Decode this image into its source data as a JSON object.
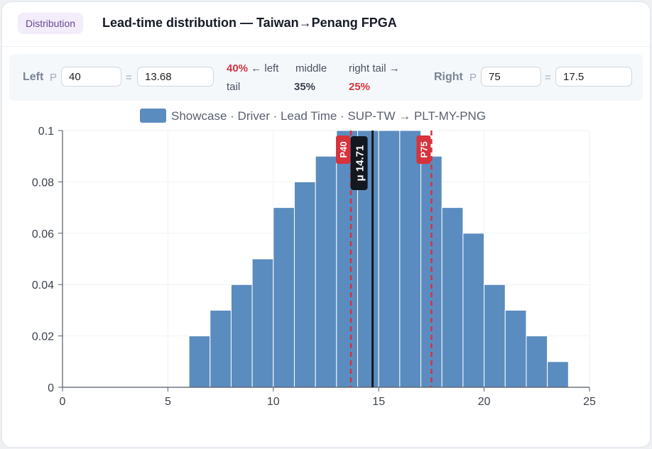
{
  "header": {
    "badge": "Distribution",
    "title": "Lead-time distribution — Taiwan→Penang FPGA"
  },
  "controls": {
    "left_label": "Left",
    "right_label": "Right",
    "p_prefix": "P",
    "equals": "=",
    "left_percentile": "40",
    "left_value": "13.68",
    "right_percentile": "75",
    "right_value": "17.5",
    "left_tail_pct": "40%",
    "left_tail_label_a": "← left",
    "left_tail_label_b": "tail",
    "middle_label": "middle",
    "middle_pct": "35%",
    "right_tail_label": "right tail →",
    "right_tail_pct": "25%"
  },
  "colors": {
    "bar": "#5b8cbf",
    "bar_stroke": "#ffffff",
    "marker_red": "#d6333d",
    "mean_line": "#111820",
    "axis": "#555b66",
    "grid": "#eef2f6"
  },
  "chart_data": {
    "type": "bar",
    "legend": "Showcase · Driver · Lead Time · SUP-TW → PLT-MY-PNG",
    "x": [
      6.5,
      7.5,
      8.5,
      9.5,
      10.5,
      11.5,
      12.5,
      13.5,
      14.5,
      15.5,
      16.5,
      17.5,
      18.5,
      19.5,
      20.5,
      21.5,
      22.5,
      23.5
    ],
    "bin_width": 1,
    "values": [
      0.02,
      0.03,
      0.04,
      0.05,
      0.07,
      0.08,
      0.09,
      0.1,
      0.1,
      0.1,
      0.1,
      0.09,
      0.07,
      0.06,
      0.04,
      0.03,
      0.02,
      0.01
    ],
    "xlim": [
      0,
      25
    ],
    "ylim": [
      0,
      0.1
    ],
    "xticks": [
      0,
      5,
      10,
      15,
      20,
      25
    ],
    "yticks": [
      0,
      0.02,
      0.04,
      0.06,
      0.08,
      0.1
    ],
    "ytick_labels": [
      "0",
      "0.02",
      "0.04",
      "0.06",
      "0.08",
      "0.1"
    ],
    "markers": [
      {
        "label": "P40",
        "x": 13.68,
        "style": "dashed"
      },
      {
        "label": "P75",
        "x": 17.5,
        "style": "dashed"
      }
    ],
    "mean": {
      "label": "μ 14.71",
      "x": 14.71
    }
  }
}
